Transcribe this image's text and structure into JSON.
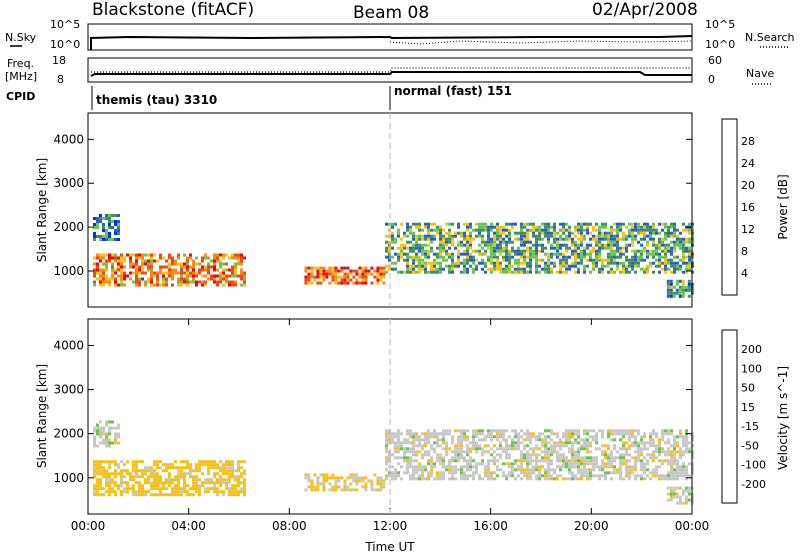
{
  "header": {
    "title": "Blackstone (fitACF)",
    "beam": "Beam 08",
    "date": "02/Apr/2008"
  },
  "strip_panels": {
    "nsky_label": "N.Sky",
    "nsky_ticks": [
      "10^5",
      "10^0"
    ],
    "nsearch_label": "N.Search",
    "nsearch_ticks": [
      "10^5",
      "10^0"
    ],
    "freq_label_1": "Freq.",
    "freq_label_2": "[MHz]",
    "freq_ticks": [
      "18",
      "8"
    ],
    "nave_label": "Nave",
    "nave_ticks": [
      "60",
      "0"
    ],
    "cpid_label": "CPID",
    "modes": [
      {
        "name": "themis (tau) 3310",
        "start_hour": 0
      },
      {
        "name": "normal (fast) 151",
        "start_hour": 12
      }
    ]
  },
  "chart_data": [
    {
      "type": "heatmap",
      "title": "",
      "xlabel": "",
      "ylabel": "Slant Range [km]",
      "yticks": [
        "1000",
        "2000",
        "3000",
        "4000"
      ],
      "ylim": [
        180,
        4600
      ],
      "xlim_hours": [
        0,
        24
      ],
      "colorbar": {
        "label": "Power [dB]",
        "ticks": [
          "4",
          "8",
          "12",
          "16",
          "20",
          "24",
          "28"
        ],
        "colors": [
          "#0a2ee6",
          "#2a5fc8",
          "#3f8f6a",
          "#6ac64f",
          "#f5c21c",
          "#f58c1a",
          "#ec4a18",
          "#e30c10"
        ]
      },
      "echo_regions": [
        {
          "t0": 0.2,
          "t1": 6.2,
          "r0": 650,
          "r1": 1400,
          "power_db": 22
        },
        {
          "t0": 0.2,
          "t1": 1.2,
          "r0": 1750,
          "r1": 2300,
          "power_db": 8
        },
        {
          "t0": 8.6,
          "t1": 11.8,
          "r0": 700,
          "r1": 1100,
          "power_db": 24
        },
        {
          "t0": 11.8,
          "t1": 24,
          "r0": 1000,
          "r1": 2100,
          "power_db": 12
        },
        {
          "t0": 23,
          "t1": 24,
          "r0": 400,
          "r1": 800,
          "power_db": 10
        }
      ]
    },
    {
      "type": "heatmap",
      "title": "",
      "xlabel": "Time UT",
      "ylabel": "Slant Range [km]",
      "yticks": [
        "1000",
        "2000",
        "3000",
        "4000"
      ],
      "ylim": [
        180,
        4600
      ],
      "xlim_hours": [
        0,
        24
      ],
      "xticks": [
        "00:00",
        "04:00",
        "08:00",
        "12:00",
        "16:00",
        "20:00",
        "00:00"
      ],
      "colorbar": {
        "label": "Velocity [m s^-1]",
        "ticks": [
          "200",
          "100",
          "50",
          "15",
          "-15",
          "-50",
          "-100",
          "-200"
        ],
        "colors": [
          "#0a2ee6",
          "#2a5fc8",
          "#3f8f6a",
          "#6ac64f",
          "#c8c8c8",
          "#f5c21c",
          "#f58c1a",
          "#ec4a18",
          "#e30c10"
        ]
      },
      "echo_regions": [
        {
          "t0": 0.2,
          "t1": 6.2,
          "r0": 650,
          "r1": 1400,
          "velocity": -30
        },
        {
          "t0": 0.2,
          "t1": 1.2,
          "r0": 1750,
          "r1": 2300,
          "velocity": 0
        },
        {
          "t0": 8.6,
          "t1": 11.8,
          "r0": 700,
          "r1": 1100,
          "velocity": -20
        },
        {
          "t0": 11.8,
          "t1": 24,
          "r0": 1000,
          "r1": 2100,
          "velocity": 0
        },
        {
          "t0": 23,
          "t1": 24,
          "r0": 400,
          "r1": 800,
          "velocity": 0
        }
      ]
    }
  ]
}
